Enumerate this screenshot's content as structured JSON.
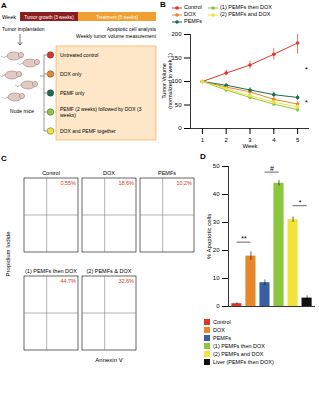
{
  "panel_a": {
    "label": "A",
    "timeline": {
      "axis_label": "Week",
      "phases": [
        {
          "label": "Tumor growth (3 weeks)",
          "color": "#8b1e1e"
        },
        {
          "label": "Treatment (5 weeks)",
          "color": "#f0a030"
        }
      ]
    },
    "notes": [
      "Tumor implantation",
      "Apoptotic cell analysis",
      "Weekly tumor volume measurement"
    ],
    "animals": "Nude mice",
    "groups": [
      {
        "label": "Untreated control",
        "color": "#d9372b"
      },
      {
        "label": "DOX only",
        "color": "#e8862a"
      },
      {
        "label": "PEMF only",
        "color": "#1e6b52"
      },
      {
        "label": "PEMF (2 weeks) followed by DOX (3 weeks)",
        "color": "#8cc63f"
      },
      {
        "label": "DOX and PEMF together",
        "color": "#f2e33a"
      }
    ]
  },
  "panel_c": {
    "label": "C",
    "x_label": "Annexin V",
    "y_label": "Propidium Iodide",
    "plots": [
      {
        "title": "Control",
        "percent": "0.55%"
      },
      {
        "title": "DOX",
        "percent": "18.6%"
      },
      {
        "title": "PEMFs",
        "percent": "10.2%"
      },
      {
        "title": "(1) PEMFs then DOX",
        "percent": "44.7%"
      },
      {
        "title": "(2) PEMFs & DOX",
        "percent": "32.6%"
      }
    ]
  },
  "chart_data": [
    {
      "panel": "B",
      "type": "line",
      "x_label": "Week",
      "y_label": "Tumor Volume (normalized to week 1)",
      "x": [
        1,
        2,
        3,
        4,
        5
      ],
      "xlim": [
        0.5,
        5.5
      ],
      "xticks": [
        1,
        2,
        3,
        4,
        5
      ],
      "ylim": [
        0,
        200
      ],
      "yticks": [
        0,
        50,
        100,
        150,
        200
      ],
      "legend": "top",
      "marker": "circle",
      "series": [
        {
          "name": "Control",
          "color": "#d9372b",
          "values": [
            100,
            118,
            135,
            158,
            182
          ],
          "errors": [
            0,
            6,
            8,
            12,
            24
          ]
        },
        {
          "name": "DOX",
          "color": "#e8862a",
          "values": [
            100,
            88,
            78,
            62,
            52
          ],
          "errors": [
            0,
            5,
            5,
            5,
            6
          ]
        },
        {
          "name": "PEMFs",
          "color": "#1e6b52",
          "values": [
            100,
            92,
            82,
            72,
            66
          ],
          "errors": [
            0,
            4,
            5,
            5,
            6
          ]
        },
        {
          "name": "(1) PEMFs then DOX",
          "color": "#8cc63f",
          "values": [
            100,
            82,
            66,
            52,
            40
          ],
          "errors": [
            0,
            4,
            4,
            4,
            5
          ]
        },
        {
          "name": "(2) PEMFs and DOX",
          "color": "#f2e33a",
          "values": [
            100,
            85,
            70,
            56,
            46
          ],
          "errors": [
            0,
            4,
            4,
            4,
            5
          ]
        }
      ],
      "annotations": [
        {
          "text": "*",
          "x": 5.3,
          "y": 125
        },
        {
          "text": "*",
          "x": 5.3,
          "y": 55
        }
      ]
    },
    {
      "panel": "D",
      "type": "bar",
      "y_label": "% Apoptotic cells",
      "categories": [
        null
      ],
      "ylim": [
        0,
        50
      ],
      "yticks": [
        0,
        10,
        20,
        30,
        40,
        50
      ],
      "tick_labels": "y",
      "legend": "bottom",
      "series": [
        {
          "name": "Control",
          "color": "#d9372b",
          "values": [
            1
          ],
          "errors": [
            0.3
          ]
        },
        {
          "name": "DOX",
          "color": "#e8862a",
          "values": [
            18
          ],
          "errors": [
            1.5
          ]
        },
        {
          "name": "PEMFs",
          "color": "#3a5fa0",
          "values": [
            8.5
          ],
          "errors": [
            1
          ]
        },
        {
          "name": "(1) PEMFs then DOX",
          "color": "#8cc63f",
          "values": [
            44
          ],
          "errors": [
            1
          ]
        },
        {
          "name": "(2) PEMFs and DOX",
          "color": "#f2e33a",
          "values": [
            31
          ],
          "errors": [
            1
          ]
        },
        {
          "name": "Liver (PEMFs then DOX)",
          "color": "#111111",
          "values": [
            3
          ],
          "errors": [
            0.8
          ]
        }
      ],
      "annotations": [
        {
          "text": "**",
          "from": "Control",
          "to": "DOX",
          "y": 23
        },
        {
          "text": "#",
          "from": "PEMFs",
          "to": "(1) PEMFs then DOX",
          "y": 48
        },
        {
          "text": "*",
          "from": "(2) PEMFs and DOX",
          "to": "Liver (PEMFs then DOX)",
          "y": 36
        }
      ]
    }
  ]
}
